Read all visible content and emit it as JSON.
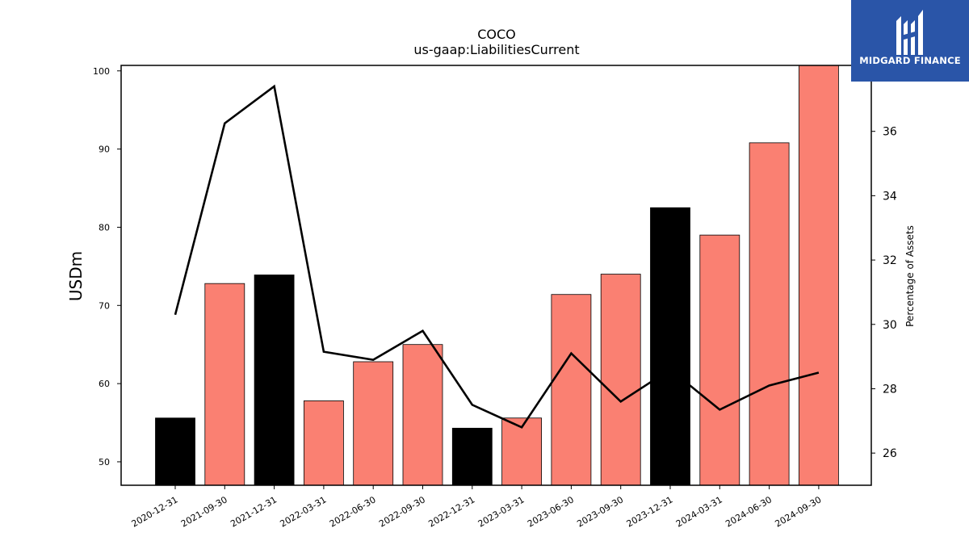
{
  "chart_data": {
    "type": "bar",
    "title": "COCO",
    "subtitle": "us-gaap:LiabilitiesCurrent",
    "ylabel": "USDm",
    "y2label": "Percentage of Assets",
    "categories": [
      "2020-12-31",
      "2021-09-30",
      "2021-12-31",
      "2022-03-31",
      "2022-06-30",
      "2022-09-30",
      "2022-12-31",
      "2023-03-31",
      "2023-06-30",
      "2023-09-30",
      "2023-12-31",
      "2024-03-31",
      "2024-06-30",
      "2024-09-30"
    ],
    "values": [
      55.6,
      72.8,
      73.9,
      57.8,
      62.8,
      65.0,
      54.3,
      55.6,
      71.4,
      74.0,
      82.5,
      79.0,
      90.8,
      100.8
    ],
    "bar_colors": [
      "#000000",
      "#fa8072",
      "#000000",
      "#fa8072",
      "#fa8072",
      "#fa8072",
      "#000000",
      "#fa8072",
      "#fa8072",
      "#fa8072",
      "#000000",
      "#fa8072",
      "#fa8072",
      "#fa8072"
    ],
    "line": {
      "values": [
        30.3,
        36.25,
        37.4,
        29.15,
        28.9,
        29.8,
        27.5,
        26.8,
        29.1,
        27.6,
        28.6,
        27.35,
        28.1,
        28.5
      ],
      "color": "#000000"
    },
    "ylim": [
      47,
      100.7
    ],
    "yticks": [
      50,
      60,
      70,
      80,
      90,
      100
    ],
    "y2lim": [
      25,
      38.05
    ],
    "y2ticks": [
      26,
      28,
      30,
      32,
      34,
      36
    ],
    "grid": false
  },
  "logo": {
    "text": "MIDGARD FINANCE",
    "color": "#2a55a8"
  }
}
